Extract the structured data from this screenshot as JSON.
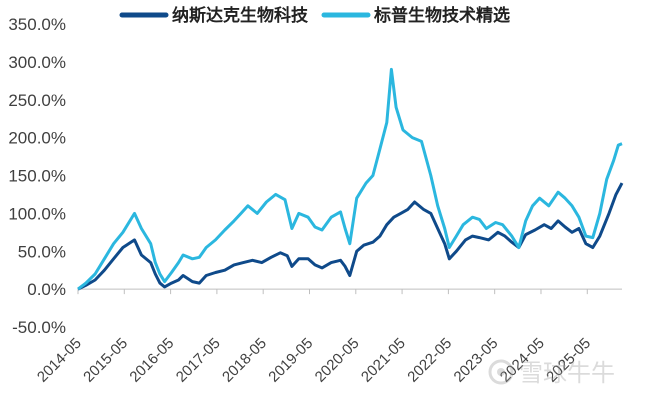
{
  "colors": {
    "nasdaq": "#0f4a8a",
    "sp": "#2bb7df",
    "axis": "#bfbfbf",
    "text": "#404040"
  },
  "chart_data": {
    "type": "line",
    "title": "",
    "xlabel": "",
    "ylabel": "",
    "ylim": [
      -50,
      350
    ],
    "grid": false,
    "legend": "top-center",
    "yticks": [
      "350.0%",
      "300.0%",
      "250.0%",
      "200.0%",
      "150.0%",
      "100.0%",
      "50.0%",
      "0.0%",
      "-50.0%"
    ],
    "ytick_values": [
      350,
      300,
      250,
      200,
      150,
      100,
      50,
      0,
      -50
    ],
    "xticks": [
      "2014-05",
      "2015-05",
      "2016-05",
      "2017-05",
      "2018-05",
      "2019-05",
      "2020-05",
      "2021-05",
      "2022-05",
      "2023-05",
      "2024-05",
      "2025-05"
    ],
    "x_range": [
      2014.33,
      2026.08
    ],
    "series": [
      {
        "name": "纳斯达克生物科技",
        "color": "#0f4a8a",
        "points": [
          [
            2014.33,
            0
          ],
          [
            2014.5,
            5
          ],
          [
            2014.7,
            12
          ],
          [
            2014.9,
            25
          ],
          [
            2015.1,
            40
          ],
          [
            2015.3,
            55
          ],
          [
            2015.55,
            65
          ],
          [
            2015.7,
            45
          ],
          [
            2015.9,
            35
          ],
          [
            2016.0,
            20
          ],
          [
            2016.1,
            8
          ],
          [
            2016.2,
            3
          ],
          [
            2016.35,
            8
          ],
          [
            2016.5,
            12
          ],
          [
            2016.6,
            18
          ],
          [
            2016.8,
            10
          ],
          [
            2016.95,
            8
          ],
          [
            2017.1,
            18
          ],
          [
            2017.3,
            22
          ],
          [
            2017.5,
            25
          ],
          [
            2017.7,
            32
          ],
          [
            2017.9,
            35
          ],
          [
            2018.1,
            38
          ],
          [
            2018.3,
            35
          ],
          [
            2018.5,
            42
          ],
          [
            2018.7,
            48
          ],
          [
            2018.85,
            44
          ],
          [
            2018.95,
            30
          ],
          [
            2019.1,
            40
          ],
          [
            2019.3,
            40
          ],
          [
            2019.45,
            32
          ],
          [
            2019.6,
            28
          ],
          [
            2019.8,
            35
          ],
          [
            2020.0,
            38
          ],
          [
            2020.1,
            30
          ],
          [
            2020.2,
            18
          ],
          [
            2020.35,
            50
          ],
          [
            2020.5,
            58
          ],
          [
            2020.7,
            62
          ],
          [
            2020.85,
            70
          ],
          [
            2021.0,
            85
          ],
          [
            2021.15,
            95
          ],
          [
            2021.3,
            100
          ],
          [
            2021.45,
            105
          ],
          [
            2021.6,
            115
          ],
          [
            2021.8,
            105
          ],
          [
            2021.95,
            100
          ],
          [
            2022.1,
            80
          ],
          [
            2022.25,
            60
          ],
          [
            2022.35,
            40
          ],
          [
            2022.5,
            50
          ],
          [
            2022.7,
            65
          ],
          [
            2022.85,
            70
          ],
          [
            2023.0,
            68
          ],
          [
            2023.2,
            65
          ],
          [
            2023.4,
            75
          ],
          [
            2023.55,
            70
          ],
          [
            2023.7,
            62
          ],
          [
            2023.85,
            55
          ],
          [
            2024.0,
            72
          ],
          [
            2024.2,
            78
          ],
          [
            2024.4,
            85
          ],
          [
            2024.55,
            80
          ],
          [
            2024.7,
            90
          ],
          [
            2024.85,
            82
          ],
          [
            2025.0,
            75
          ],
          [
            2025.15,
            80
          ],
          [
            2025.3,
            60
          ],
          [
            2025.45,
            55
          ],
          [
            2025.6,
            70
          ],
          [
            2025.8,
            100
          ],
          [
            2025.95,
            125
          ],
          [
            2026.08,
            140
          ]
        ]
      },
      {
        "name": "标普生物技术精选",
        "color": "#2bb7df",
        "points": [
          [
            2014.33,
            0
          ],
          [
            2014.5,
            8
          ],
          [
            2014.7,
            20
          ],
          [
            2014.9,
            40
          ],
          [
            2015.1,
            60
          ],
          [
            2015.3,
            75
          ],
          [
            2015.55,
            100
          ],
          [
            2015.7,
            80
          ],
          [
            2015.9,
            60
          ],
          [
            2016.0,
            35
          ],
          [
            2016.1,
            20
          ],
          [
            2016.2,
            10
          ],
          [
            2016.35,
            22
          ],
          [
            2016.5,
            35
          ],
          [
            2016.6,
            45
          ],
          [
            2016.8,
            40
          ],
          [
            2016.95,
            42
          ],
          [
            2017.1,
            55
          ],
          [
            2017.3,
            65
          ],
          [
            2017.5,
            78
          ],
          [
            2017.7,
            90
          ],
          [
            2017.85,
            100
          ],
          [
            2018.0,
            110
          ],
          [
            2018.2,
            100
          ],
          [
            2018.4,
            115
          ],
          [
            2018.6,
            125
          ],
          [
            2018.8,
            118
          ],
          [
            2018.95,
            80
          ],
          [
            2019.1,
            100
          ],
          [
            2019.3,
            95
          ],
          [
            2019.45,
            82
          ],
          [
            2019.6,
            78
          ],
          [
            2019.8,
            95
          ],
          [
            2020.0,
            102
          ],
          [
            2020.1,
            80
          ],
          [
            2020.2,
            60
          ],
          [
            2020.35,
            120
          ],
          [
            2020.55,
            140
          ],
          [
            2020.7,
            150
          ],
          [
            2020.85,
            185
          ],
          [
            2021.0,
            220
          ],
          [
            2021.1,
            290
          ],
          [
            2021.2,
            240
          ],
          [
            2021.35,
            210
          ],
          [
            2021.55,
            200
          ],
          [
            2021.75,
            195
          ],
          [
            2021.95,
            150
          ],
          [
            2022.1,
            110
          ],
          [
            2022.25,
            80
          ],
          [
            2022.35,
            55
          ],
          [
            2022.5,
            70
          ],
          [
            2022.65,
            85
          ],
          [
            2022.85,
            95
          ],
          [
            2023.0,
            92
          ],
          [
            2023.15,
            80
          ],
          [
            2023.35,
            88
          ],
          [
            2023.5,
            85
          ],
          [
            2023.7,
            70
          ],
          [
            2023.85,
            55
          ],
          [
            2024.0,
            90
          ],
          [
            2024.15,
            110
          ],
          [
            2024.3,
            120
          ],
          [
            2024.5,
            110
          ],
          [
            2024.7,
            128
          ],
          [
            2024.85,
            120
          ],
          [
            2025.0,
            110
          ],
          [
            2025.15,
            95
          ],
          [
            2025.3,
            70
          ],
          [
            2025.45,
            68
          ],
          [
            2025.6,
            100
          ],
          [
            2025.75,
            145
          ],
          [
            2025.9,
            170
          ],
          [
            2026.0,
            190
          ],
          [
            2026.08,
            192
          ]
        ]
      }
    ]
  },
  "watermark": {
    "text": "雪球牛牛"
  }
}
